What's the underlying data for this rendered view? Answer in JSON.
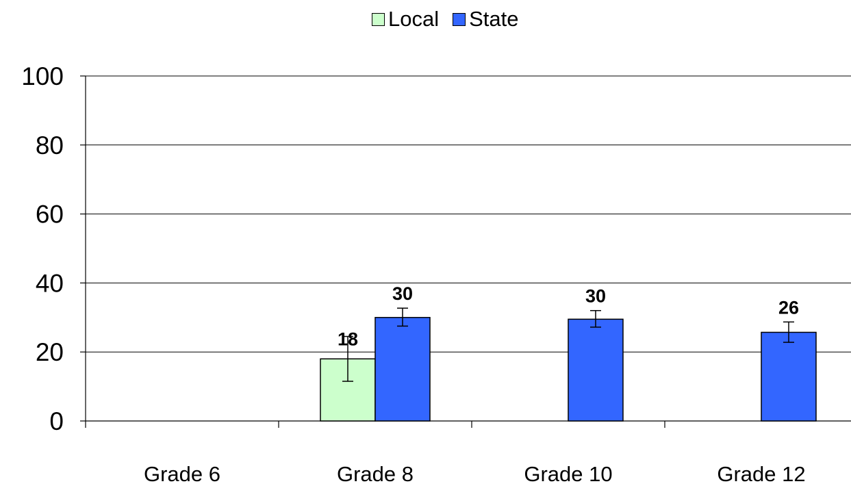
{
  "chart_data": {
    "type": "bar",
    "categories": [
      "Grade 6",
      "Grade 8",
      "Grade 10",
      "Grade 12"
    ],
    "series": [
      {
        "name": "Local",
        "color": "#ccffcc",
        "values": [
          null,
          18,
          null,
          null
        ],
        "labels": [
          "",
          "18",
          "",
          ""
        ],
        "error_low": [
          null,
          11.5,
          null,
          null
        ],
        "error_high": [
          null,
          24.5,
          null,
          null
        ]
      },
      {
        "name": "State",
        "color": "#3366ff",
        "values": [
          null,
          30,
          29.5,
          25.7
        ],
        "labels": [
          "",
          "30",
          "30",
          "26"
        ],
        "error_low": [
          null,
          27.5,
          27.2,
          22.8
        ],
        "error_high": [
          null,
          32.7,
          32.0,
          28.7
        ]
      }
    ],
    "ylim": [
      0,
      100
    ],
    "yticks": [
      "0",
      "20",
      "40",
      "60",
      "80",
      "100"
    ],
    "grid": true,
    "legend_position": "top-center",
    "title": "",
    "xlabel": "",
    "ylabel": ""
  }
}
